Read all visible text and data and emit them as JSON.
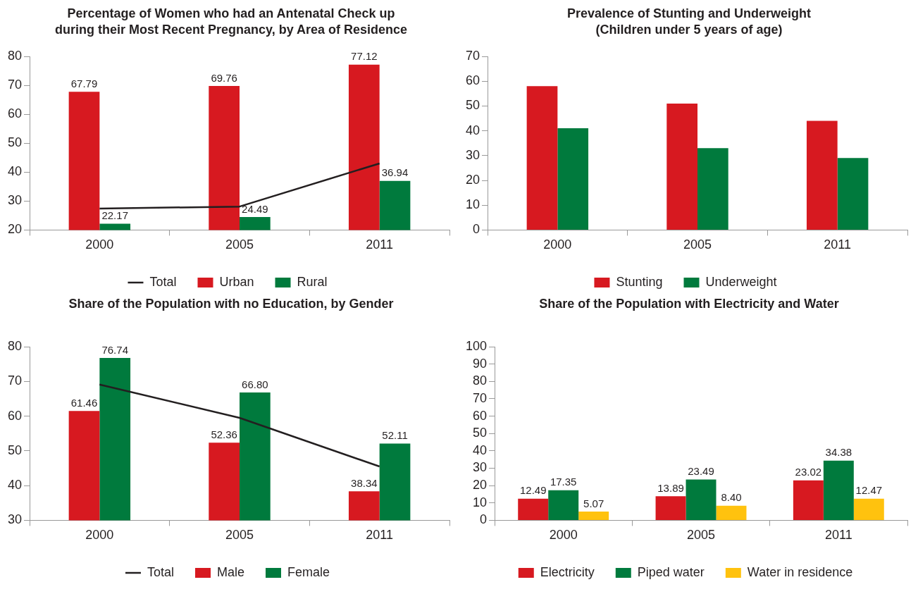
{
  "chart_data": [
    {
      "type": "bar",
      "title": "Percentage of Women who had an Antenatal Check up during their Most Recent Pregnancy, by Area of Residence",
      "categories": [
        "2000",
        "2005",
        "2011"
      ],
      "series": [
        {
          "name": "Urban",
          "color": "#d71920",
          "values": [
            67.79,
            69.76,
            77.12
          ],
          "value_labels": [
            "67.79",
            "69.76",
            "77.12"
          ]
        },
        {
          "name": "Rural",
          "color": "#007a3d",
          "values": [
            22.17,
            24.49,
            36.94
          ],
          "value_labels": [
            "22.17",
            "24.49",
            "36.94"
          ]
        },
        {
          "name": "Total",
          "type": "line",
          "color": "#231f20",
          "values": [
            27.4,
            28.1,
            43.0
          ]
        }
      ],
      "ylim": [
        20,
        80
      ],
      "yticks": [
        20,
        30,
        40,
        50,
        60,
        70,
        80
      ],
      "grid": false,
      "legend": "bottom",
      "marker": "none"
    },
    {
      "type": "bar",
      "title": "Prevalence of Stunting and Underweight",
      "subtitle": "(Children under 5 years of age)",
      "categories": [
        "2000",
        "2005",
        "2011"
      ],
      "series": [
        {
          "name": "Stunting",
          "color": "#d71920",
          "values": [
            58,
            51,
            44
          ]
        },
        {
          "name": "Underweight",
          "color": "#007a3d",
          "values": [
            41,
            33,
            29
          ]
        }
      ],
      "ylim": [
        0,
        70
      ],
      "yticks": [
        0,
        10,
        20,
        30,
        40,
        50,
        60,
        70
      ],
      "grid": false,
      "legend": "bottom"
    },
    {
      "type": "bar",
      "title": "Share of the Population with no Education, by Gender",
      "categories": [
        "2000",
        "2005",
        "2011"
      ],
      "series": [
        {
          "name": "Male",
          "color": "#d71920",
          "values": [
            61.46,
            52.36,
            38.34
          ],
          "value_labels": [
            "61.46",
            "52.36",
            "38.34"
          ]
        },
        {
          "name": "Female",
          "color": "#007a3d",
          "values": [
            76.74,
            66.8,
            52.11
          ],
          "value_labels": [
            "76.74",
            "66.80",
            "52.11"
          ]
        },
        {
          "name": "Total",
          "type": "line",
          "color": "#231f20",
          "values": [
            69.1,
            59.5,
            45.5
          ]
        }
      ],
      "ylim": [
        30,
        80
      ],
      "yticks": [
        30,
        40,
        50,
        60,
        70,
        80
      ],
      "grid": false,
      "legend": "bottom",
      "marker": "none"
    },
    {
      "type": "bar",
      "title": "Share of the Population with Electricity and Water",
      "categories": [
        "2000",
        "2005",
        "2011"
      ],
      "series": [
        {
          "name": "Electricity",
          "color": "#d71920",
          "values": [
            12.49,
            13.89,
            23.02
          ],
          "value_labels": [
            "12.49",
            "13.89",
            "23.02"
          ]
        },
        {
          "name": "Piped water",
          "color": "#007a3d",
          "values": [
            17.35,
            23.49,
            34.38
          ],
          "value_labels": [
            "17.35",
            "23.49",
            "34.38"
          ]
        },
        {
          "name": "Water in residence",
          "color": "#ffc20e",
          "values": [
            5.07,
            8.4,
            12.47
          ],
          "value_labels": [
            "5.07",
            "8.40",
            "12.47"
          ]
        }
      ],
      "ylim": [
        0,
        100
      ],
      "yticks": [
        0,
        10,
        20,
        30,
        40,
        50,
        60,
        70,
        80,
        90,
        100
      ],
      "grid": false,
      "legend": "bottom"
    }
  ]
}
